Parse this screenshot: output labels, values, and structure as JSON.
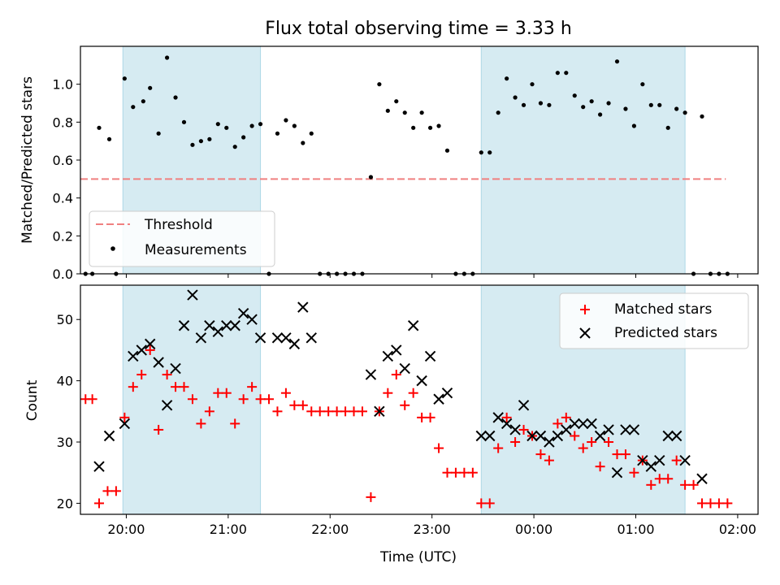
{
  "title": "Flux total observing time = 3.33 h",
  "colors": {
    "shade": "#add8e6",
    "threshold": "#f08080",
    "measurement": "#000000",
    "matched": "#ff0000",
    "predicted": "#000000"
  },
  "chart_data": [
    {
      "type": "scatter",
      "ylabel": "Matched/Predicted stars",
      "ylim": [
        0,
        1.2
      ],
      "yticks": [
        "0.0",
        "0.2",
        "0.4",
        "0.6",
        "0.8",
        "1.0"
      ],
      "xlim": [
        "19:33",
        "02:12"
      ],
      "shaded_intervals": [
        [
          "19:58",
          "21:19"
        ],
        [
          "23:29",
          "01:29"
        ]
      ],
      "legend": {
        "position": "lower-left",
        "items": [
          "Threshold",
          "Measurements"
        ]
      },
      "threshold": {
        "name": "Threshold",
        "y": 0.5,
        "x": [
          "19:33",
          "01:53"
        ]
      },
      "series": [
        {
          "name": "Measurements",
          "marker": "dot",
          "points": [
            [
              "19:36",
              0.0
            ],
            [
              "19:40",
              0.0
            ],
            [
              "19:44",
              0.77
            ],
            [
              "19:50",
              0.71
            ],
            [
              "19:54",
              0.0
            ],
            [
              "19:59",
              1.03
            ],
            [
              "20:04",
              0.88
            ],
            [
              "20:10",
              0.91
            ],
            [
              "20:14",
              0.98
            ],
            [
              "20:19",
              0.74
            ],
            [
              "20:24",
              1.14
            ],
            [
              "20:29",
              0.93
            ],
            [
              "20:34",
              0.8
            ],
            [
              "20:39",
              0.68
            ],
            [
              "20:44",
              0.7
            ],
            [
              "20:49",
              0.71
            ],
            [
              "20:54",
              0.79
            ],
            [
              "20:59",
              0.77
            ],
            [
              "21:04",
              0.67
            ],
            [
              "21:09",
              0.72
            ],
            [
              "21:14",
              0.78
            ],
            [
              "21:19",
              0.79
            ],
            [
              "21:24",
              0.0
            ],
            [
              "21:29",
              0.74
            ],
            [
              "21:34",
              0.81
            ],
            [
              "21:39",
              0.78
            ],
            [
              "21:44",
              0.69
            ],
            [
              "21:49",
              0.74
            ],
            [
              "21:54",
              0.0
            ],
            [
              "21:59",
              0.0
            ],
            [
              "22:04",
              0.0
            ],
            [
              "22:09",
              0.0
            ],
            [
              "22:14",
              0.0
            ],
            [
              "22:19",
              0.0
            ],
            [
              "22:24",
              0.51
            ],
            [
              "22:29",
              1.0
            ],
            [
              "22:34",
              0.86
            ],
            [
              "22:39",
              0.91
            ],
            [
              "22:44",
              0.85
            ],
            [
              "22:49",
              0.77
            ],
            [
              "22:54",
              0.85
            ],
            [
              "22:59",
              0.77
            ],
            [
              "23:04",
              0.78
            ],
            [
              "23:09",
              0.65
            ],
            [
              "23:14",
              0.0
            ],
            [
              "23:19",
              0.0
            ],
            [
              "23:24",
              0.0
            ],
            [
              "23:29",
              0.64
            ],
            [
              "23:34",
              0.64
            ],
            [
              "23:39",
              0.85
            ],
            [
              "23:44",
              1.03
            ],
            [
              "23:49",
              0.93
            ],
            [
              "23:54",
              0.89
            ],
            [
              "23:59",
              1.0
            ],
            [
              "00:04",
              0.9
            ],
            [
              "00:09",
              0.89
            ],
            [
              "00:14",
              1.06
            ],
            [
              "00:19",
              1.06
            ],
            [
              "00:24",
              0.94
            ],
            [
              "00:29",
              0.88
            ],
            [
              "00:34",
              0.91
            ],
            [
              "00:39",
              0.84
            ],
            [
              "00:44",
              0.9
            ],
            [
              "00:49",
              1.12
            ],
            [
              "00:54",
              0.87
            ],
            [
              "00:59",
              0.78
            ],
            [
              "01:04",
              1.0
            ],
            [
              "01:09",
              0.89
            ],
            [
              "01:14",
              0.89
            ],
            [
              "01:19",
              0.77
            ],
            [
              "01:24",
              0.87
            ],
            [
              "01:29",
              0.85
            ],
            [
              "01:34",
              0.0
            ],
            [
              "01:39",
              0.83
            ],
            [
              "01:44",
              0.0
            ],
            [
              "01:49",
              0.0
            ],
            [
              "01:54",
              0.0
            ]
          ]
        }
      ]
    },
    {
      "type": "scatter",
      "ylabel": "Count",
      "xlabel": "Time (UTC)",
      "ylim": [
        18.2,
        55.6
      ],
      "yticks": [
        "20",
        "30",
        "40",
        "50"
      ],
      "xlim": [
        "19:33",
        "02:12"
      ],
      "xticks": [
        "20:00",
        "21:00",
        "22:00",
        "23:00",
        "00:00",
        "01:00",
        "02:00"
      ],
      "shaded_intervals": [
        [
          "19:58",
          "21:19"
        ],
        [
          "23:29",
          "01:29"
        ]
      ],
      "legend": {
        "position": "top-right",
        "items": [
          "Matched stars",
          "Predicted stars"
        ]
      },
      "series": [
        {
          "name": "Matched stars",
          "marker": "plus",
          "points": [
            [
              "19:36",
              37
            ],
            [
              "19:40",
              37
            ],
            [
              "19:44",
              20
            ],
            [
              "19:49",
              22
            ],
            [
              "19:54",
              22
            ],
            [
              "19:59",
              34
            ],
            [
              "20:04",
              39
            ],
            [
              "20:09",
              41
            ],
            [
              "20:14",
              45
            ],
            [
              "20:19",
              32
            ],
            [
              "20:24",
              41
            ],
            [
              "20:29",
              39
            ],
            [
              "20:34",
              39
            ],
            [
              "20:39",
              37
            ],
            [
              "20:44",
              33
            ],
            [
              "20:49",
              35
            ],
            [
              "20:54",
              38
            ],
            [
              "20:59",
              38
            ],
            [
              "21:04",
              33
            ],
            [
              "21:09",
              37
            ],
            [
              "21:14",
              39
            ],
            [
              "21:19",
              37
            ],
            [
              "21:24",
              37
            ],
            [
              "21:29",
              35
            ],
            [
              "21:34",
              38
            ],
            [
              "21:39",
              36
            ],
            [
              "21:44",
              36
            ],
            [
              "21:49",
              35
            ],
            [
              "21:54",
              35
            ],
            [
              "21:59",
              35
            ],
            [
              "22:04",
              35
            ],
            [
              "22:09",
              35
            ],
            [
              "22:14",
              35
            ],
            [
              "22:19",
              35
            ],
            [
              "22:24",
              21
            ],
            [
              "22:29",
              35
            ],
            [
              "22:34",
              38
            ],
            [
              "22:39",
              41
            ],
            [
              "22:44",
              36
            ],
            [
              "22:49",
              38
            ],
            [
              "22:54",
              34
            ],
            [
              "22:59",
              34
            ],
            [
              "23:04",
              29
            ],
            [
              "23:09",
              25
            ],
            [
              "23:14",
              25
            ],
            [
              "23:19",
              25
            ],
            [
              "23:24",
              25
            ],
            [
              "23:29",
              20
            ],
            [
              "23:34",
              20
            ],
            [
              "23:39",
              29
            ],
            [
              "23:44",
              34
            ],
            [
              "23:49",
              30
            ],
            [
              "23:54",
              32
            ],
            [
              "23:59",
              31
            ],
            [
              "00:04",
              28
            ],
            [
              "00:09",
              27
            ],
            [
              "00:14",
              33
            ],
            [
              "00:19",
              34
            ],
            [
              "00:24",
              31
            ],
            [
              "00:29",
              29
            ],
            [
              "00:34",
              30
            ],
            [
              "00:39",
              26
            ],
            [
              "00:44",
              30
            ],
            [
              "00:49",
              28
            ],
            [
              "00:54",
              28
            ],
            [
              "00:59",
              25
            ],
            [
              "01:04",
              27
            ],
            [
              "01:09",
              23
            ],
            [
              "01:14",
              24
            ],
            [
              "01:19",
              24
            ],
            [
              "01:24",
              27
            ],
            [
              "01:29",
              23
            ],
            [
              "01:34",
              23
            ],
            [
              "01:39",
              20
            ],
            [
              "01:44",
              20
            ],
            [
              "01:49",
              20
            ],
            [
              "01:54",
              20
            ]
          ]
        },
        {
          "name": "Predicted stars",
          "marker": "x",
          "points": [
            [
              "19:44",
              26
            ],
            [
              "19:50",
              31
            ],
            [
              "19:59",
              33
            ],
            [
              "20:04",
              44
            ],
            [
              "20:09",
              45
            ],
            [
              "20:14",
              46
            ],
            [
              "20:19",
              43
            ],
            [
              "20:24",
              36
            ],
            [
              "20:29",
              42
            ],
            [
              "20:34",
              49
            ],
            [
              "20:39",
              54
            ],
            [
              "20:44",
              47
            ],
            [
              "20:49",
              49
            ],
            [
              "20:54",
              48
            ],
            [
              "20:59",
              49
            ],
            [
              "21:04",
              49
            ],
            [
              "21:09",
              51
            ],
            [
              "21:14",
              50
            ],
            [
              "21:19",
              47
            ],
            [
              "21:29",
              47
            ],
            [
              "21:34",
              47
            ],
            [
              "21:39",
              46
            ],
            [
              "21:44",
              52
            ],
            [
              "21:49",
              47
            ],
            [
              "22:24",
              41
            ],
            [
              "22:29",
              35
            ],
            [
              "22:34",
              44
            ],
            [
              "22:39",
              45
            ],
            [
              "22:44",
              42
            ],
            [
              "22:49",
              49
            ],
            [
              "22:54",
              40
            ],
            [
              "22:59",
              44
            ],
            [
              "23:04",
              37
            ],
            [
              "23:09",
              38
            ],
            [
              "23:29",
              31
            ],
            [
              "23:34",
              31
            ],
            [
              "23:39",
              34
            ],
            [
              "23:44",
              33
            ],
            [
              "23:49",
              32
            ],
            [
              "23:54",
              36
            ],
            [
              "23:59",
              31
            ],
            [
              "00:04",
              31
            ],
            [
              "00:09",
              30
            ],
            [
              "00:14",
              31
            ],
            [
              "00:19",
              32
            ],
            [
              "00:24",
              33
            ],
            [
              "00:29",
              33
            ],
            [
              "00:34",
              33
            ],
            [
              "00:39",
              31
            ],
            [
              "00:44",
              32
            ],
            [
              "00:49",
              25
            ],
            [
              "00:54",
              32
            ],
            [
              "00:59",
              32
            ],
            [
              "01:04",
              27
            ],
            [
              "01:09",
              26
            ],
            [
              "01:14",
              27
            ],
            [
              "01:19",
              31
            ],
            [
              "01:24",
              31
            ],
            [
              "01:29",
              27
            ],
            [
              "01:39",
              24
            ]
          ]
        }
      ]
    }
  ]
}
